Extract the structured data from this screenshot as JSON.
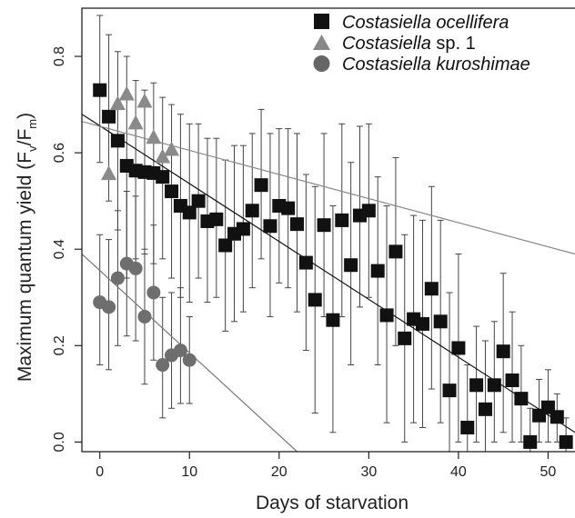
{
  "chart_data": {
    "type": "scatter",
    "xlabel": "Days of starvation",
    "ylabel": {
      "main": "Maximum quantum yield (F",
      "sub_v": "v",
      "slash": "/F",
      "sub_m": "m",
      "close": ")"
    },
    "xlim": [
      -2,
      53
    ],
    "ylim": [
      -0.02,
      0.9
    ],
    "x_ticks": [
      0,
      10,
      20,
      30,
      40,
      50
    ],
    "x_tick_labels": [
      "0",
      "10",
      "20",
      "30",
      "40",
      "50"
    ],
    "y_ticks": [
      0.0,
      0.2,
      0.4,
      0.6,
      0.8
    ],
    "y_tick_labels": [
      "0.0",
      "0.2",
      "0.4",
      "0.6",
      "0.8"
    ],
    "grid": false,
    "legend_position": "top-right",
    "legend": [
      {
        "italic": "Costasiella ocellifera",
        "rest": "",
        "marker": "square",
        "color": "#111111"
      },
      {
        "italic": "Costasiella",
        "rest": " sp. 1",
        "marker": "triangle",
        "color": "#888888"
      },
      {
        "italic": "Costasiella kuroshimae",
        "rest": "",
        "marker": "circle",
        "color": "#666666"
      }
    ],
    "series": [
      {
        "marker": "square",
        "color": "#111111",
        "points": [
          {
            "x": 0,
            "y": 0.73,
            "lo": 0.58,
            "hi": 0.885
          },
          {
            "x": 1,
            "y": 0.675,
            "lo": 0.5,
            "hi": 0.845
          },
          {
            "x": 2,
            "y": 0.625,
            "lo": 0.44,
            "hi": 0.81
          },
          {
            "x": 3,
            "y": 0.573,
            "lo": 0.34,
            "hi": 0.8
          },
          {
            "x": 4,
            "y": 0.563,
            "lo": 0.38,
            "hi": 0.75
          },
          {
            "x": 5,
            "y": 0.56,
            "lo": 0.39,
            "hi": 0.73
          },
          {
            "x": 6,
            "y": 0.558,
            "lo": 0.37,
            "hi": 0.745
          },
          {
            "x": 7,
            "y": 0.55,
            "lo": 0.38,
            "hi": 0.715
          },
          {
            "x": 8,
            "y": 0.52,
            "lo": 0.34,
            "hi": 0.7
          },
          {
            "x": 9,
            "y": 0.49,
            "lo": 0.3,
            "hi": 0.68
          },
          {
            "x": 10,
            "y": 0.476,
            "lo": 0.29,
            "hi": 0.66
          },
          {
            "x": 11,
            "y": 0.5,
            "lo": 0.34,
            "hi": 0.66
          },
          {
            "x": 12,
            "y": 0.458,
            "lo": 0.29,
            "hi": 0.63
          },
          {
            "x": 13,
            "y": 0.462,
            "lo": 0.3,
            "hi": 0.63
          },
          {
            "x": 14,
            "y": 0.408,
            "lo": 0.23,
            "hi": 0.585
          },
          {
            "x": 15,
            "y": 0.432,
            "lo": 0.25,
            "hi": 0.615
          },
          {
            "x": 16,
            "y": 0.442,
            "lo": 0.27,
            "hi": 0.615
          },
          {
            "x": 17,
            "y": 0.48,
            "lo": 0.32,
            "hi": 0.64
          },
          {
            "x": 18,
            "y": 0.533,
            "lo": 0.38,
            "hi": 0.69
          },
          {
            "x": 19,
            "y": 0.448,
            "lo": 0.26,
            "hi": 0.64
          },
          {
            "x": 20,
            "y": 0.49,
            "lo": 0.33,
            "hi": 0.65
          },
          {
            "x": 21,
            "y": 0.485,
            "lo": 0.32,
            "hi": 0.65
          },
          {
            "x": 22,
            "y": 0.452,
            "lo": 0.27,
            "hi": 0.64
          },
          {
            "x": 23,
            "y": 0.372,
            "lo": 0.19,
            "hi": 0.555
          },
          {
            "x": 24,
            "y": 0.295,
            "lo": 0.06,
            "hi": 0.53
          },
          {
            "x": 25,
            "y": 0.45,
            "lo": 0.26,
            "hi": 0.64
          },
          {
            "x": 26,
            "y": 0.253,
            "lo": 0.02,
            "hi": 0.49
          },
          {
            "x": 27,
            "y": 0.46,
            "lo": 0.26,
            "hi": 0.66
          },
          {
            "x": 28,
            "y": 0.367,
            "lo": 0.16,
            "hi": 0.58
          },
          {
            "x": 29,
            "y": 0.47,
            "lo": 0.28,
            "hi": 0.655
          },
          {
            "x": 30,
            "y": 0.48,
            "lo": 0.3,
            "hi": 0.66
          },
          {
            "x": 31,
            "y": 0.355,
            "lo": 0.16,
            "hi": 0.55
          },
          {
            "x": 32,
            "y": 0.263,
            "lo": 0.04,
            "hi": 0.49
          },
          {
            "x": 33,
            "y": 0.395,
            "lo": 0.2,
            "hi": 0.59
          },
          {
            "x": 34,
            "y": 0.215,
            "lo": 0.0,
            "hi": 0.43
          },
          {
            "x": 35,
            "y": 0.255,
            "lo": 0.04,
            "hi": 0.47
          },
          {
            "x": 36,
            "y": 0.245,
            "lo": 0.03,
            "hi": 0.46
          },
          {
            "x": 37,
            "y": 0.318,
            "lo": 0.11,
            "hi": 0.53
          },
          {
            "x": 38,
            "y": 0.25,
            "lo": 0.04,
            "hi": 0.46
          },
          {
            "x": 39,
            "y": 0.107,
            "lo": -0.02,
            "hi": 0.31
          },
          {
            "x": 40,
            "y": 0.195,
            "lo": 0.0,
            "hi": 0.39
          },
          {
            "x": 41,
            "y": 0.03,
            "lo": -0.02,
            "hi": 0.16
          },
          {
            "x": 42,
            "y": 0.118,
            "lo": 0.0,
            "hi": 0.24
          },
          {
            "x": 43,
            "y": 0.068,
            "lo": -0.02,
            "hi": 0.21
          },
          {
            "x": 44,
            "y": 0.118,
            "lo": 0.0,
            "hi": 0.25
          },
          {
            "x": 45,
            "y": 0.188,
            "lo": 0.02,
            "hi": 0.35
          },
          {
            "x": 46,
            "y": 0.128,
            "lo": 0.0,
            "hi": 0.27
          },
          {
            "x": 47,
            "y": 0.09,
            "lo": 0.0,
            "hi": 0.2
          },
          {
            "x": 48,
            "y": 0.0,
            "lo": -0.02,
            "hi": 0.07
          },
          {
            "x": 49,
            "y": 0.055,
            "lo": 0.0,
            "hi": 0.13
          },
          {
            "x": 50,
            "y": 0.072,
            "lo": 0.0,
            "hi": 0.15
          },
          {
            "x": 51,
            "y": 0.052,
            "lo": 0.0,
            "hi": 0.1
          },
          {
            "x": 52,
            "y": 0.0,
            "lo": -0.02,
            "hi": 0.05
          }
        ]
      },
      {
        "marker": "triangle",
        "color": "#8a8a8a",
        "points": [
          {
            "x": 1,
            "y": 0.555
          },
          {
            "x": 2,
            "y": 0.7
          },
          {
            "x": 3,
            "y": 0.72
          },
          {
            "x": 4,
            "y": 0.66
          },
          {
            "x": 5,
            "y": 0.705
          },
          {
            "x": 6,
            "y": 0.63
          },
          {
            "x": 7,
            "y": 0.59
          },
          {
            "x": 8,
            "y": 0.605
          }
        ]
      },
      {
        "marker": "circle",
        "color": "#6e6e6e",
        "points": [
          {
            "x": 0,
            "y": 0.29,
            "lo": 0.16,
            "hi": 0.43
          },
          {
            "x": 1,
            "y": 0.28,
            "lo": 0.15,
            "hi": 0.42
          },
          {
            "x": 2,
            "y": 0.34,
            "lo": 0.2,
            "hi": 0.48
          },
          {
            "x": 3,
            "y": 0.37,
            "lo": 0.22,
            "hi": 0.52
          },
          {
            "x": 4,
            "y": 0.36,
            "lo": 0.21,
            "hi": 0.51
          },
          {
            "x": 5,
            "y": 0.26,
            "lo": 0.12,
            "hi": 0.4
          },
          {
            "x": 6,
            "y": 0.31,
            "lo": 0.17,
            "hi": 0.45
          },
          {
            "x": 7,
            "y": 0.16,
            "lo": 0.05,
            "hi": 0.3
          },
          {
            "x": 8,
            "y": 0.18,
            "lo": 0.07,
            "hi": 0.31
          },
          {
            "x": 9,
            "y": 0.19,
            "lo": 0.08,
            "hi": 0.32
          },
          {
            "x": 10,
            "y": 0.17,
            "lo": 0.08,
            "hi": 0.26
          }
        ]
      }
    ],
    "fit_lines": [
      {
        "x1": -2,
        "y1": 0.68,
        "x2": 53,
        "y2": 0.02,
        "color": "#111111"
      },
      {
        "x1": -2,
        "y1": 0.665,
        "x2": 53,
        "y2": 0.39,
        "color": "#888888"
      },
      {
        "x1": -2,
        "y1": 0.39,
        "x2": 22,
        "y2": -0.02,
        "color": "#777777"
      }
    ]
  }
}
